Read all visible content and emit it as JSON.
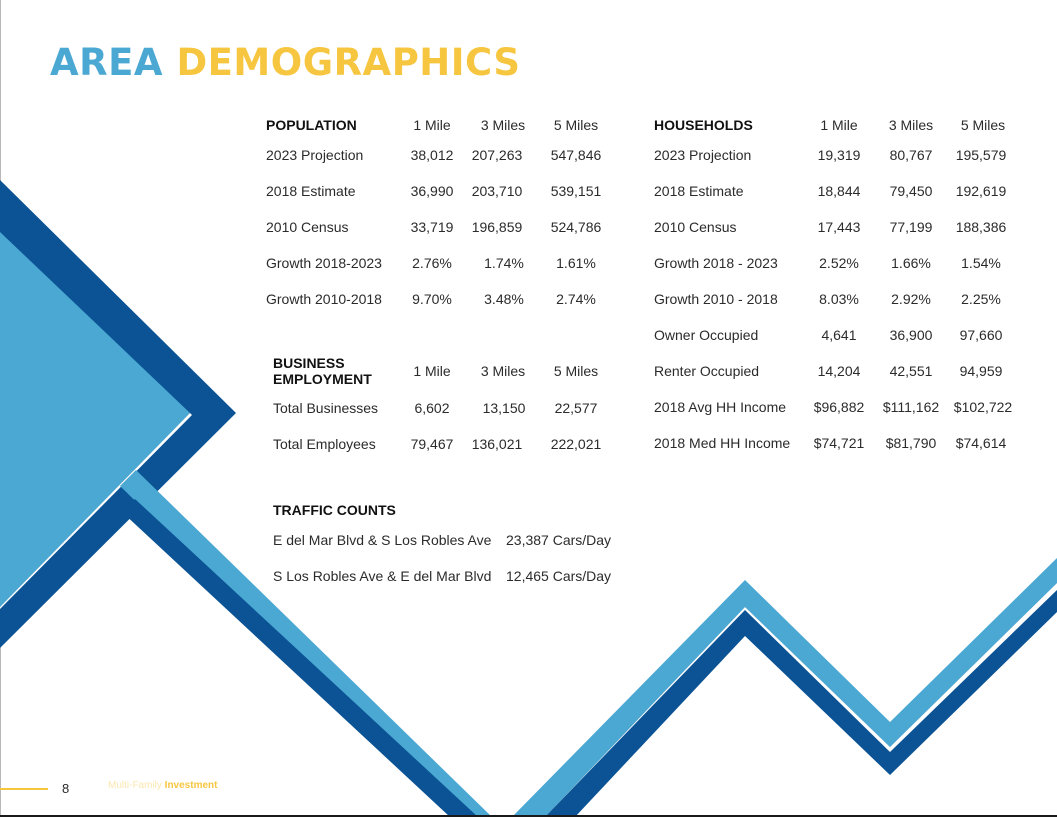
{
  "title": {
    "part1": "AREA",
    "part2": "DEMOGRAPHICS"
  },
  "colors": {
    "light_blue": "#4aa8d3",
    "dark_blue": "#0b5394",
    "yellow": "#f7c640"
  },
  "population": {
    "header": "POPULATION",
    "columns": [
      "1 Mile",
      "3 Miles",
      "5 Miles"
    ],
    "rows": [
      {
        "label": "2023 Projection",
        "values": [
          "38,012",
          "207,263",
          "547,846"
        ]
      },
      {
        "label": "2018 Estimate",
        "values": [
          "36,990",
          "203,710",
          "539,151"
        ]
      },
      {
        "label": "2010 Census",
        "values": [
          "33,719",
          "196,859",
          "524,786"
        ]
      },
      {
        "label": "Growth 2018-2023",
        "values": [
          "2.76%",
          "1.74%",
          "1.61%"
        ]
      },
      {
        "label": "Growth 2010-2018",
        "values": [
          "9.70%",
          "3.48%",
          "2.74%"
        ]
      }
    ]
  },
  "households": {
    "header": "HOUSEHOLDS",
    "columns": [
      "1 Mile",
      "3 Miles",
      "5 Miles"
    ],
    "rows": [
      {
        "label": "2023 Projection",
        "values": [
          "19,319",
          "80,767",
          "195,579"
        ]
      },
      {
        "label": "2018 Estimate",
        "values": [
          "18,844",
          "79,450",
          "192,619"
        ]
      },
      {
        "label": "2010 Census",
        "values": [
          "17,443",
          "77,199",
          "188,386"
        ]
      },
      {
        "label": "Growth 2018 - 2023",
        "values": [
          "2.52%",
          "1.66%",
          "1.54%"
        ]
      },
      {
        "label": "Growth 2010 - 2018",
        "values": [
          "8.03%",
          "2.92%",
          "2.25%"
        ]
      },
      {
        "label": "Owner Occupied",
        "values": [
          "4,641",
          "36,900",
          "97,660"
        ]
      },
      {
        "label": "Renter Occupied",
        "values": [
          "14,204",
          "42,551",
          "94,959"
        ]
      },
      {
        "label": "2018 Avg HH Income",
        "values": [
          "$96,882",
          "$111,162",
          "$102,722"
        ]
      },
      {
        "label": "2018 Med HH Income",
        "values": [
          "$74,721",
          "$81,790",
          "$74,614"
        ]
      }
    ]
  },
  "business": {
    "header_line1": "BUSINESS",
    "header_line2": "EMPLOYMENT",
    "columns": [
      "1 Mile",
      "3 Miles",
      "5 Miles"
    ],
    "rows": [
      {
        "label": "Total Businesses",
        "values": [
          "6,602",
          "13,150",
          "22,577"
        ]
      },
      {
        "label": "Total Employees",
        "values": [
          "79,467",
          "136,021",
          "222,021"
        ]
      }
    ]
  },
  "traffic": {
    "header": "TRAFFIC COUNTS",
    "rows": [
      {
        "label": "E del Mar Blvd & S Los Robles Ave",
        "value": "23,387 Cars/Day"
      },
      {
        "label": "S Los Robles Ave & E del Mar Blvd",
        "value": "12,465 Cars/Day"
      }
    ]
  },
  "footer": {
    "page": "8",
    "text_light": "Multi-Family",
    "text_bold": "Investment"
  }
}
